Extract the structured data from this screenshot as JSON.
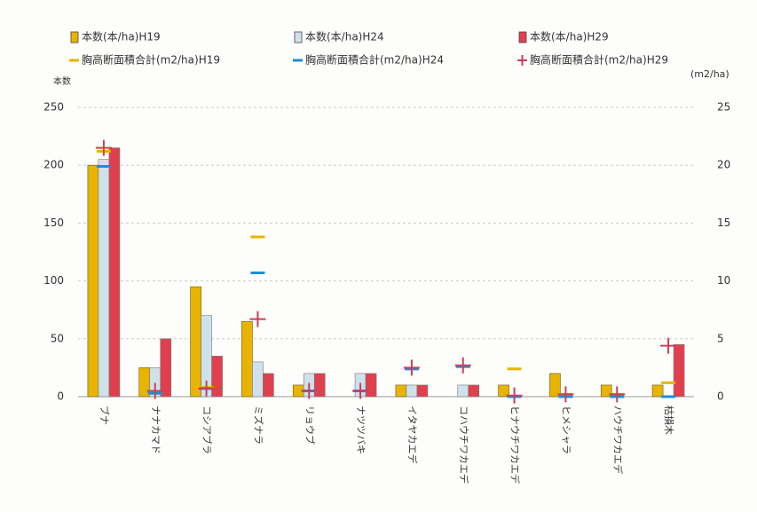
{
  "chart_data": {
    "type": "bar",
    "y_label": "本数",
    "y2_label": "(m2/ha)",
    "categories": [
      "ブナ",
      "ナナカマド",
      "コシアブラ",
      "ミズナラ",
      "リョウブ",
      "ナツツバキ",
      "イタヤカエデ",
      "コハウチワカエデ",
      "ヒナウチワカエデ",
      "ヒメシャラ",
      "ハウチワカエデ",
      "枯損木"
    ],
    "series": [
      {
        "name": "本数(本/ha)H19",
        "color": "#e8b400",
        "kind": "bar",
        "values": [
          200,
          25,
          95,
          65,
          10,
          0,
          10,
          0,
          10,
          20,
          10,
          10
        ]
      },
      {
        "name": "本数(本/ha)H24",
        "color": "#cfe2ec",
        "kind": "bar",
        "values": [
          205,
          25,
          70,
          30,
          20,
          20,
          10,
          10,
          0,
          0,
          0,
          0
        ]
      },
      {
        "name": "本数(本/ha)H29",
        "color": "#e0404e",
        "kind": "bar",
        "values": [
          215,
          50,
          35,
          20,
          20,
          20,
          10,
          10,
          0,
          0,
          0,
          45
        ]
      },
      {
        "name": "胸高断面積合計(m2/ha)H19",
        "color": "#e8b400",
        "kind": "dash",
        "axis": "y2",
        "values": [
          21.2,
          0.3,
          0.8,
          13.8,
          0.5,
          0.5,
          2.4,
          2.6,
          2.4,
          0.2,
          0.2,
          1.2
        ]
      },
      {
        "name": "胸高断面積合計(m2/ha)H24",
        "color": "#1a8fd8",
        "kind": "dash",
        "axis": "y2",
        "values": [
          19.9,
          0.3,
          0.7,
          10.7,
          0.5,
          0.5,
          2.4,
          2.6,
          0,
          0,
          0,
          0
        ]
      },
      {
        "name": "胸高断面積合計(m2/ha)H29",
        "color": "#c8405c",
        "kind": "plus",
        "axis": "y2",
        "values": [
          21.5,
          0.5,
          0.7,
          6.7,
          0.5,
          0.5,
          2.5,
          2.7,
          0.1,
          0.2,
          0.2,
          4.4
        ]
      }
    ],
    "ylim": [
      0,
      250
    ],
    "yticks": [
      0,
      50,
      100,
      150,
      200,
      250
    ],
    "y2lim": [
      0,
      25
    ],
    "y2ticks": [
      0,
      5,
      10,
      15,
      20,
      25
    ],
    "grid": true
  }
}
